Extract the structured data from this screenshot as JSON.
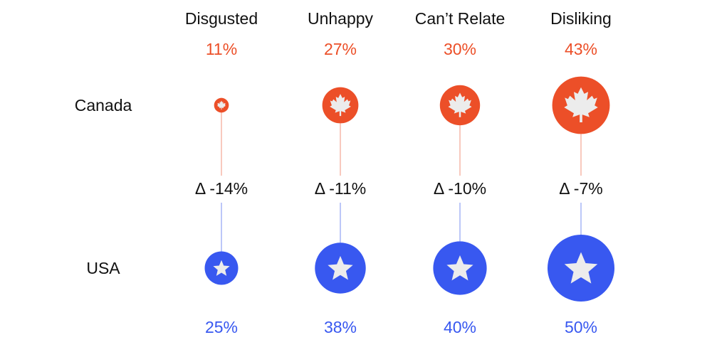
{
  "chart_data": {
    "type": "dot",
    "categories": [
      "Disgusted",
      "Unhappy",
      "Can’t Relate",
      "Disliking"
    ],
    "series": [
      {
        "name": "Canada",
        "icon": "maple-leaf-icon",
        "color": "#ec4f28",
        "values": [
          11,
          27,
          30,
          43
        ],
        "labels": [
          "11%",
          "27%",
          "30%",
          "43%"
        ]
      },
      {
        "name": "USA",
        "icon": "star-icon",
        "color": "#3858f0",
        "values": [
          25,
          38,
          40,
          50
        ],
        "labels": [
          "25%",
          "38%",
          "40%",
          "50%"
        ]
      }
    ],
    "delta_labels": [
      "Δ -14%",
      "Δ -11%",
      "Δ -10%",
      "Δ -7%"
    ],
    "delta_values": [
      -14,
      -11,
      -10,
      -7
    ]
  }
}
